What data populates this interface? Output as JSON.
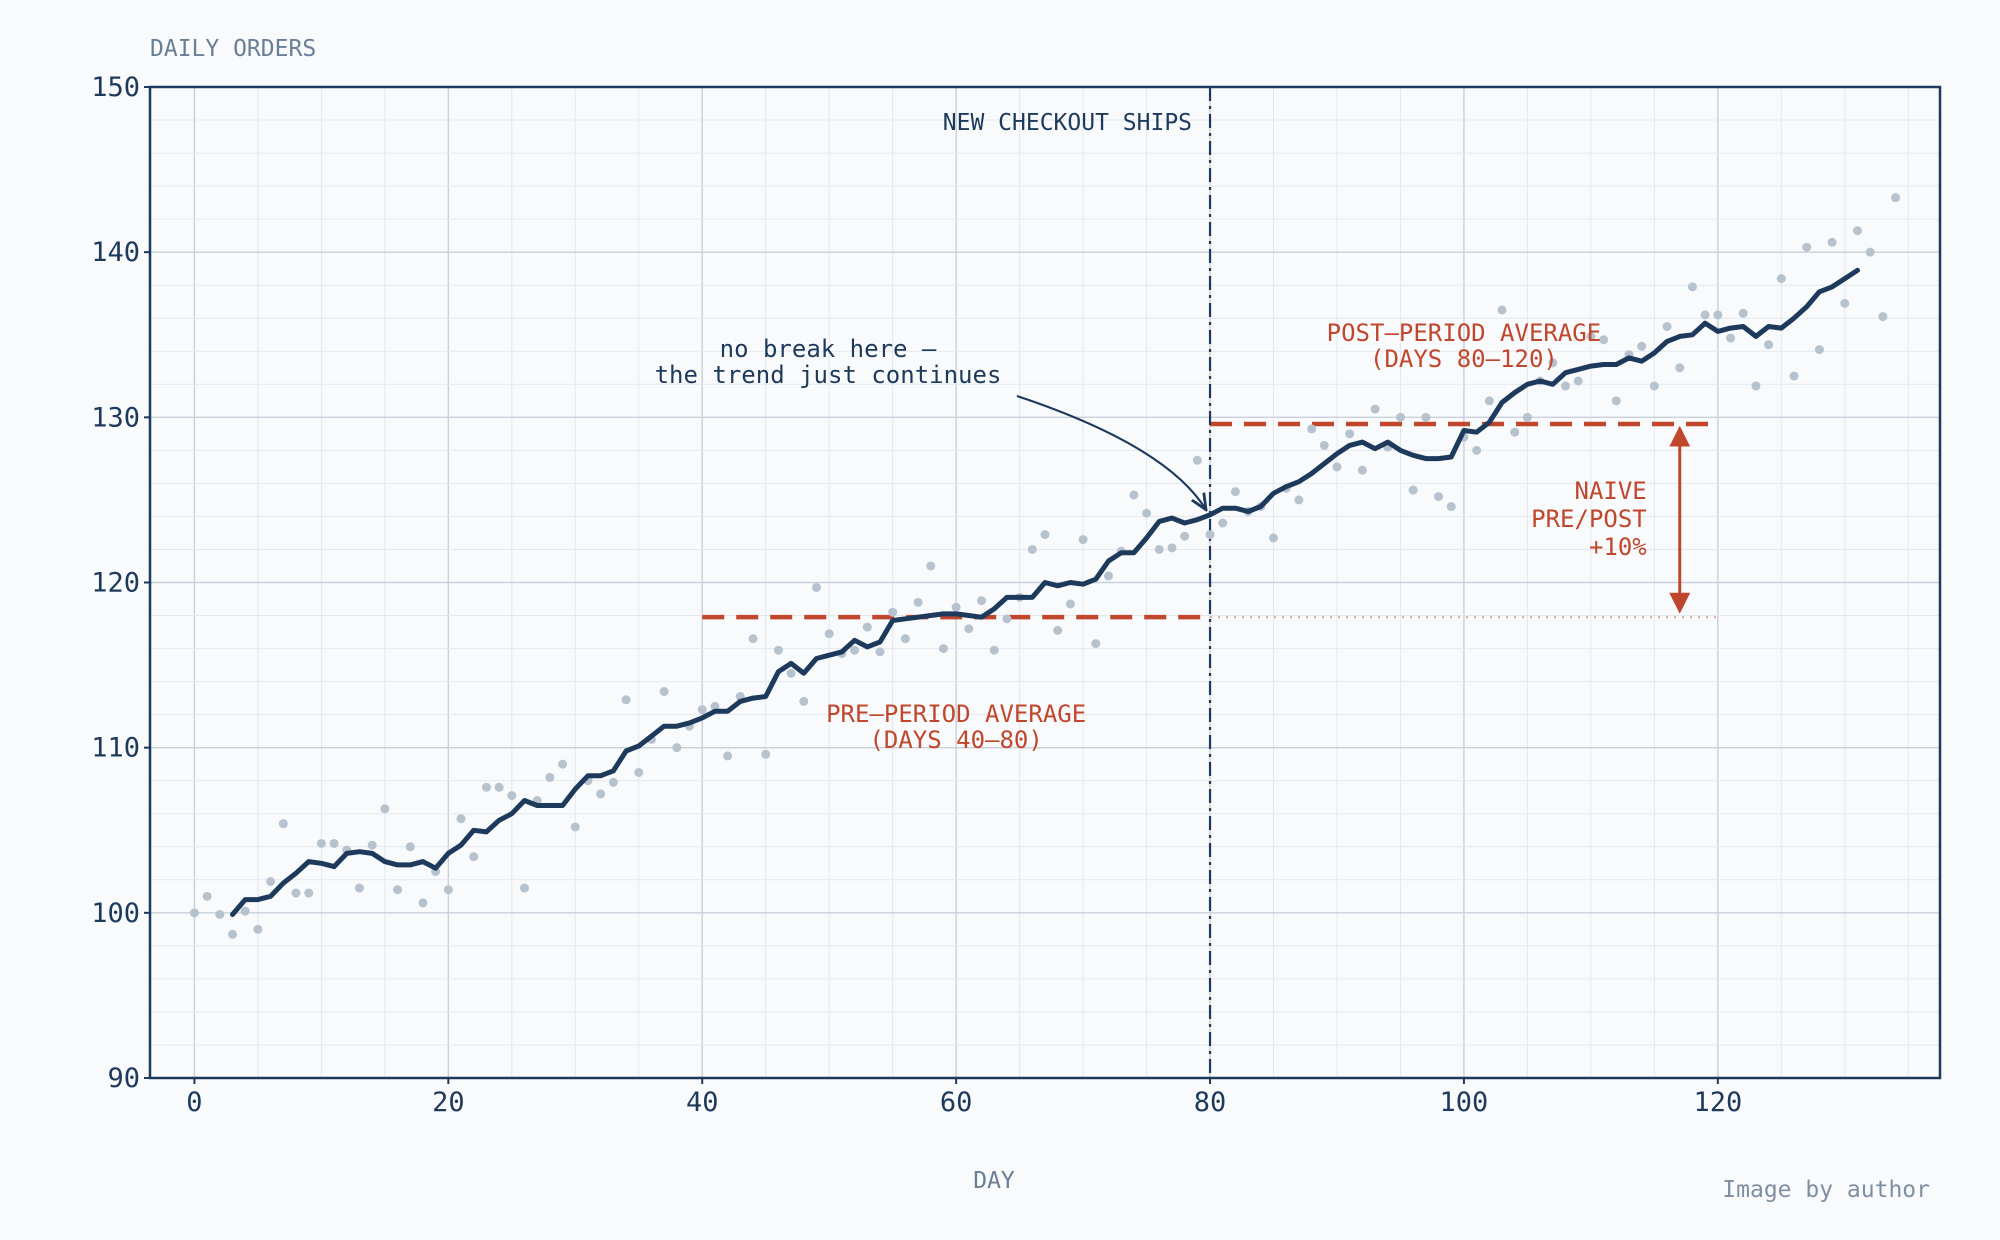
{
  "chart_data": {
    "type": "line",
    "ylabel": "DAILY ORDERS",
    "xlabel": "DAY",
    "xlim": [
      -3.5,
      137.5
    ],
    "ylim": [
      90,
      150
    ],
    "x_ticks": [
      0,
      20,
      40,
      60,
      80,
      100,
      120
    ],
    "y_ticks": [
      90,
      100,
      110,
      120,
      130,
      140,
      150
    ],
    "grid": true,
    "colors": {
      "primary": "#1d3a5c",
      "accent": "#c0462c",
      "points": "#b7c2cf",
      "background": "#f9fafc"
    },
    "series": [
      {
        "kind": "scatter",
        "x": [
          0,
          1,
          2,
          3,
          4,
          5,
          6,
          7,
          8,
          9,
          10,
          11,
          12,
          13,
          14,
          15,
          16,
          17,
          18,
          19,
          20,
          21,
          22,
          23,
          24,
          25,
          26,
          27,
          28,
          29,
          30,
          31,
          32,
          33,
          34,
          35,
          36,
          37,
          38,
          39,
          40,
          41,
          42,
          43,
          44,
          45,
          46,
          47,
          48,
          49,
          50,
          51,
          52,
          53,
          54,
          55,
          56,
          57,
          58,
          59,
          60,
          61,
          62,
          63,
          64,
          65,
          66,
          67,
          68,
          69,
          70,
          71,
          72,
          73,
          74,
          75,
          76,
          77,
          78,
          79,
          80,
          81,
          82,
          83,
          84,
          85,
          86,
          87,
          88,
          89,
          90,
          91,
          92,
          93,
          94,
          95,
          96,
          97,
          98,
          99,
          100,
          101,
          102,
          103,
          104,
          105,
          106,
          107,
          108,
          109,
          110,
          111,
          112,
          113,
          114,
          115,
          116,
          117,
          118,
          119,
          120,
          121,
          122,
          123,
          124,
          125,
          126,
          127,
          128,
          129,
          130,
          131,
          132,
          133,
          134
        ],
        "y": [
          100.0,
          101.0,
          99.9,
          98.7,
          100.1,
          99.0,
          101.9,
          105.4,
          101.2,
          101.2,
          104.2,
          104.2,
          103.8,
          101.5,
          104.1,
          106.3,
          101.4,
          104.0,
          100.6,
          102.5,
          101.4,
          105.7,
          103.4,
          107.6,
          107.6,
          107.1,
          101.5,
          106.8,
          108.2,
          109.0,
          105.2,
          108.0,
          107.2,
          107.9,
          112.9,
          108.5,
          110.5,
          113.4,
          110.0,
          111.3,
          112.3,
          112.5,
          109.5,
          113.1,
          116.6,
          109.6,
          115.9,
          114.5,
          112.8,
          119.7,
          116.9,
          115.7,
          115.9,
          117.3,
          115.8,
          118.2,
          116.6,
          118.8,
          121.0,
          116.0,
          118.5,
          117.2,
          118.9,
          115.9,
          117.8,
          119.1,
          122.0,
          122.9,
          117.1,
          118.7,
          122.6,
          116.3,
          120.4,
          121.9,
          125.3,
          124.2,
          122.0,
          122.1,
          122.8,
          127.4,
          122.9,
          123.6,
          125.5,
          124.3,
          124.6,
          122.7,
          125.7,
          125.0,
          129.3,
          128.3,
          127.0,
          129.0,
          126.8,
          130.5,
          128.2,
          130.0,
          125.6,
          130.0,
          125.2,
          124.6,
          128.8,
          128.0,
          131.0,
          136.5,
          129.1,
          130.0,
          132.2,
          133.3,
          131.9,
          132.2,
          134.9,
          134.7,
          131.0,
          133.8,
          134.3,
          131.9,
          135.5,
          133.0,
          137.9,
          136.2,
          136.2,
          134.8,
          136.3,
          131.9,
          134.4,
          138.4,
          132.5,
          140.3,
          134.1,
          140.6,
          136.9,
          141.3,
          140.0,
          136.1,
          143.3
        ]
      },
      {
        "kind": "line",
        "x": [
          3,
          4,
          5,
          6,
          7,
          8,
          9,
          10,
          11,
          12,
          13,
          14,
          15,
          16,
          17,
          18,
          19,
          20,
          21,
          22,
          23,
          24,
          25,
          26,
          27,
          28,
          29,
          30,
          31,
          32,
          33,
          34,
          35,
          36,
          37,
          38,
          39,
          40,
          41,
          42,
          43,
          44,
          45,
          46,
          47,
          48,
          49,
          50,
          51,
          52,
          53,
          54,
          55,
          56,
          57,
          58,
          59,
          60,
          61,
          62,
          63,
          64,
          65,
          66,
          67,
          68,
          69,
          70,
          71,
          72,
          73,
          74,
          75,
          76,
          77,
          78,
          79,
          80,
          81,
          82,
          83,
          84,
          85,
          86,
          87,
          88,
          89,
          90,
          91,
          92,
          93,
          94,
          95,
          96,
          97,
          98,
          99,
          100,
          101,
          102,
          103,
          104,
          105,
          106,
          107,
          108,
          109,
          110,
          111,
          112,
          113,
          114,
          115,
          116,
          117,
          118,
          119,
          120,
          121,
          122,
          123,
          124,
          125,
          126,
          127,
          128,
          129,
          130,
          131
        ],
        "y": [
          99.9,
          100.8,
          100.8,
          101.0,
          101.8,
          102.4,
          103.1,
          103.0,
          102.8,
          103.6,
          103.7,
          103.6,
          103.1,
          102.9,
          102.9,
          103.1,
          102.7,
          103.6,
          104.1,
          105.0,
          104.9,
          105.6,
          106.0,
          106.8,
          106.5,
          106.5,
          106.5,
          107.5,
          108.3,
          108.3,
          108.6,
          109.8,
          110.1,
          110.7,
          111.3,
          111.3,
          111.5,
          111.8,
          112.2,
          112.2,
          112.8,
          113.0,
          113.1,
          114.6,
          115.1,
          114.5,
          115.4,
          115.6,
          115.8,
          116.5,
          116.1,
          116.4,
          117.7,
          117.8,
          117.9,
          118.0,
          118.1,
          118.1,
          118.0,
          117.9,
          118.4,
          119.1,
          119.1,
          119.1,
          120.0,
          119.8,
          120.0,
          119.9,
          120.2,
          121.3,
          121.8,
          121.8,
          122.7,
          123.7,
          123.9,
          123.6,
          123.8,
          124.1,
          124.5,
          124.5,
          124.3,
          124.6,
          125.4,
          125.8,
          126.1,
          126.6,
          127.2,
          127.8,
          128.3,
          128.5,
          128.1,
          128.5,
          128.0,
          127.7,
          127.5,
          127.5,
          127.6,
          129.2,
          129.1,
          129.7,
          130.9,
          131.5,
          132.0,
          132.2,
          132.0,
          132.7,
          132.9,
          133.1,
          133.2,
          133.2,
          133.6,
          133.4,
          133.9,
          134.6,
          134.9,
          135.0,
          135.7,
          135.2,
          135.4,
          135.5,
          134.9,
          135.5,
          135.4,
          136.0,
          136.7,
          137.6,
          137.9,
          138.4,
          138.9
        ]
      }
    ],
    "reference_lines": {
      "event": {
        "x": 80,
        "label": "NEW CHECKOUT SHIPS"
      },
      "pre_average": {
        "x_from": 40,
        "x_to": 80,
        "y": 117.9,
        "label_line1": "PRE–PERIOD AVERAGE",
        "label_line2": "(DAYS 40–80)"
      },
      "post_average": {
        "x_from": 80,
        "x_to": 120,
        "y": 129.6,
        "label_line1": "POST–PERIOD AVERAGE",
        "label_line2": "(DAYS 80–120)"
      },
      "pre_extension": {
        "x_from": 80,
        "x_to": 120,
        "y": 117.9
      },
      "naive_effect": {
        "x": 117,
        "y_from": 118.3,
        "y_to": 129.3,
        "label_line1": "NAIVE",
        "label_line2": "PRE/POST",
        "label_line3": "+10%"
      }
    },
    "annotation": {
      "line1": "no break here —",
      "line2": "the trend just continues",
      "target_x": 80,
      "target_y": 124.1
    }
  },
  "credit": "Image by author"
}
